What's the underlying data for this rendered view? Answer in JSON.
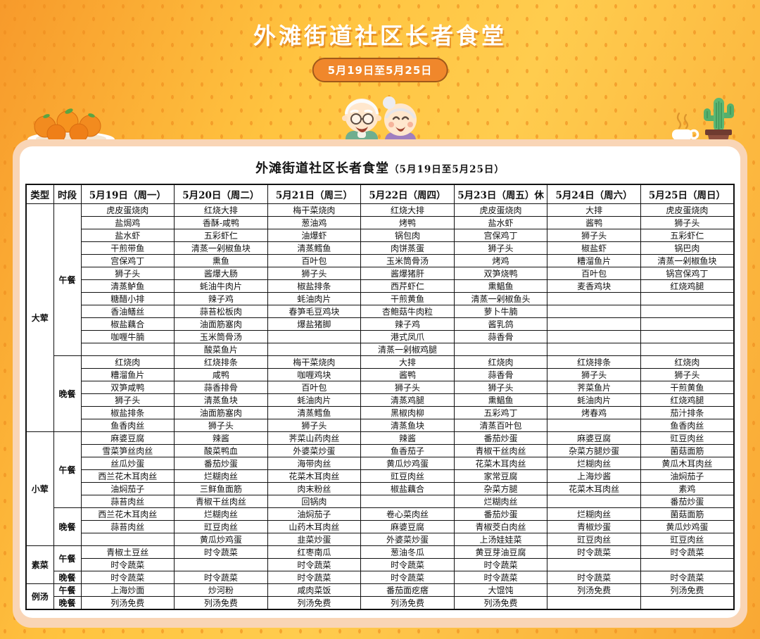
{
  "page": {
    "title": "外滩街道社区长者食堂",
    "date_badge": "5月19日至5月25日"
  },
  "colors": {
    "background_orange": "#f79a2b",
    "background_yellow": "#ffcc4e",
    "dot": "#ee8b1c",
    "card_border": "#f9d5b6",
    "badge_fill": "#f0872b",
    "badge_border": "#a0591a",
    "table_border": "#111111"
  },
  "illustrations": [
    "oranges-plate",
    "elderly-couple",
    "tea-cup",
    "cactus-plant"
  ],
  "table": {
    "title": "外滩街道社区长者食堂",
    "title_suffix": "（5月19日至5月25日）",
    "columns": [
      "类型",
      "时段",
      "5月19日（周一）",
      "5月20日（周二）",
      "5月21日（周三）",
      "5月22日（周四）",
      "5月23日（周五）休",
      "5月24日（周六）",
      "5月25日（周日）"
    ],
    "sections": [
      {
        "type": "大荤",
        "meals": [
          {
            "period": "午餐",
            "rows": [
              [
                "虎皮蛋烧肉",
                "红烧大排",
                "梅干菜烧肉",
                "红烧大排",
                "虎皮蛋烧肉",
                "大排",
                "虎皮蛋烧肉"
              ],
              [
                "盐焗鸡",
                "香酥-咸鸭",
                "葱油鸡",
                "烤鸭",
                "盐水虾",
                "酱鸭",
                "狮子头"
              ],
              [
                "盐水虾",
                "五彩虾仁",
                "油爆虾",
                "锅包肉",
                "宫保鸡丁",
                "狮子头",
                "五彩虾仁"
              ],
              [
                "干煎带鱼",
                "清蒸一剁椒鱼块",
                "清蒸鳕鱼",
                "肉饼蒸蛋",
                "狮子头",
                "椒盐虾",
                "锅巴肉"
              ],
              [
                "宫保鸡丁",
                "熏鱼",
                "百叶包",
                "玉米筒骨汤",
                "烤鸡",
                "糟溜鱼片",
                "清蒸一剁椒鱼块"
              ],
              [
                "狮子头",
                "酱爆大肠",
                "狮子头",
                "酱爆猪肝",
                "双笋烧鸭",
                "百叶包",
                "锅宫保鸡丁"
              ],
              [
                "清蒸鲈鱼",
                "蚝油牛肉片",
                "椒盐排条",
                "西芹虾仁",
                "熏鲳鱼",
                "麦香鸡块",
                "红烧鸡腿"
              ],
              [
                "糖醋小排",
                "辣子鸡",
                "蚝油肉片",
                "干煎黄鱼",
                "清蒸一剁椒鱼头",
                "",
                ""
              ],
              [
                "香油鳝丝",
                "蒜苔松板肉",
                "春笋毛豆鸡块",
                "杏鲍菇牛肉粒",
                "萝卜牛腩",
                "",
                ""
              ],
              [
                "椒盐藕合",
                "油面筋塞肉",
                "爆盐猪脚",
                "辣子鸡",
                "酱乳鸽",
                "",
                ""
              ],
              [
                "咖喱牛腩",
                "玉米筒骨汤",
                "",
                "港式凤爪",
                "蒜香骨",
                "",
                ""
              ],
              [
                "",
                "酸菜鱼片",
                "",
                "清蒸一剁椒鸡腿",
                "",
                "",
                ""
              ]
            ]
          },
          {
            "period": "晚餐",
            "rows": [
              [
                "红烧肉",
                "红烧排条",
                "梅干菜烧肉",
                "大排",
                "红烧肉",
                "红烧排条",
                "红烧肉"
              ],
              [
                "糟溜鱼片",
                "咸鸭",
                "咖喱鸡块",
                "酱鸭",
                "蒜香骨",
                "狮子头",
                "狮子头"
              ],
              [
                "双笋咸鸭",
                "蒜香排骨",
                "百叶包",
                "狮子头",
                "狮子头",
                "荠菜鱼片",
                "干煎黄鱼"
              ],
              [
                "狮子头",
                "清蒸鱼块",
                "蚝油肉片",
                "清蒸鸡腿",
                "熏鲳鱼",
                "蚝油肉片",
                "红烧鸡腿"
              ],
              [
                "椒盐排条",
                "油面筋塞肉",
                "清蒸鳕鱼",
                "黑椒肉柳",
                "五彩鸡丁",
                "烤春鸡",
                "茄汁排条"
              ],
              [
                "鱼香肉丝",
                "狮子头",
                "狮子头",
                "清蒸鱼块",
                "清蒸百叶包",
                "",
                "鱼香肉丝"
              ]
            ]
          }
        ]
      },
      {
        "type": "小荤",
        "meals": [
          {
            "period": "午餐",
            "rows": [
              [
                "麻婆豆腐",
                "辣酱",
                "荠菜山药肉丝",
                "辣酱",
                "番茄炒蛋",
                "麻婆豆腐",
                "豇豆肉丝"
              ],
              [
                "雪菜笋丝肉丝",
                "酸菜鸭血",
                "外婆菜炒蛋",
                "鱼香茄子",
                "青椒干丝肉丝",
                "杂菜方腿炒蛋",
                "菌菇面筋"
              ],
              [
                "丝瓜炒蛋",
                "番茄炒蛋",
                "海带肉丝",
                "黄瓜炒鸡蛋",
                "花菜木耳肉丝",
                "烂糊肉丝",
                "黄瓜木耳肉丝"
              ],
              [
                "西兰花木耳肉丝",
                "烂糊肉丝",
                "花菜木耳肉丝",
                "豇豆肉丝",
                "家常豆腐",
                "上海炒酱",
                "油焖茄子"
              ],
              [
                "油焖茄子",
                "三鲜鱼面筋",
                "肉末粉丝",
                "椒盐藕合",
                "杂菜方腿",
                "花菜木耳肉丝",
                "素鸡"
              ],
              [
                "蒜苔肉丝",
                "青椒干丝肉丝",
                "回锅肉",
                "",
                "烂糊肉丝",
                "",
                "番茄炒蛋"
              ]
            ]
          },
          {
            "period": "晚餐",
            "rows": [
              [
                "西兰花木耳肉丝",
                "烂糊肉丝",
                "油焖茄子",
                "卷心菜肉丝",
                "番茄炒蛋",
                "烂糊肉丝",
                "菌菇面筋"
              ],
              [
                "蒜苔肉丝",
                "豇豆肉丝",
                "山药木耳肉丝",
                "麻婆豆腐",
                "青椒茭白肉丝",
                "青椒炒蛋",
                "黄瓜炒鸡蛋"
              ],
              [
                "",
                "黄瓜炒鸡蛋",
                "韭菜炒蛋",
                "外婆菜炒蛋",
                "上汤娃娃菜",
                "豇豆肉丝",
                "豇豆肉丝"
              ]
            ]
          }
        ]
      },
      {
        "type": "素菜",
        "meals": [
          {
            "period": "午餐",
            "rows": [
              [
                "青椒土豆丝",
                "时令蔬菜",
                "红枣南瓜",
                "葱油冬瓜",
                "黄豆芽油豆腐",
                "时令蔬菜",
                "时令蔬菜"
              ],
              [
                "时令蔬菜",
                "",
                "时令蔬菜",
                "时令蔬菜",
                "时令蔬菜",
                "",
                ""
              ]
            ]
          },
          {
            "period": "晚餐",
            "rows": [
              [
                "时令蔬菜",
                "时令蔬菜",
                "时令蔬菜",
                "时令蔬菜",
                "时令蔬菜",
                "时令蔬菜",
                "时令蔬菜"
              ]
            ]
          }
        ]
      },
      {
        "type": "例汤",
        "meals": [
          {
            "period": "午餐",
            "rows": [
              [
                "上海炒面",
                "炒河粉",
                "咸肉菜饭",
                "番茄面疙瘩",
                "大馄饨",
                "列汤免费",
                "列汤免费"
              ]
            ]
          },
          {
            "period": "晚餐",
            "rows": [
              [
                "列汤免费",
                "列汤免费",
                "列汤免费",
                "列汤免费",
                "列汤免费",
                "",
                ""
              ]
            ]
          }
        ]
      }
    ]
  }
}
